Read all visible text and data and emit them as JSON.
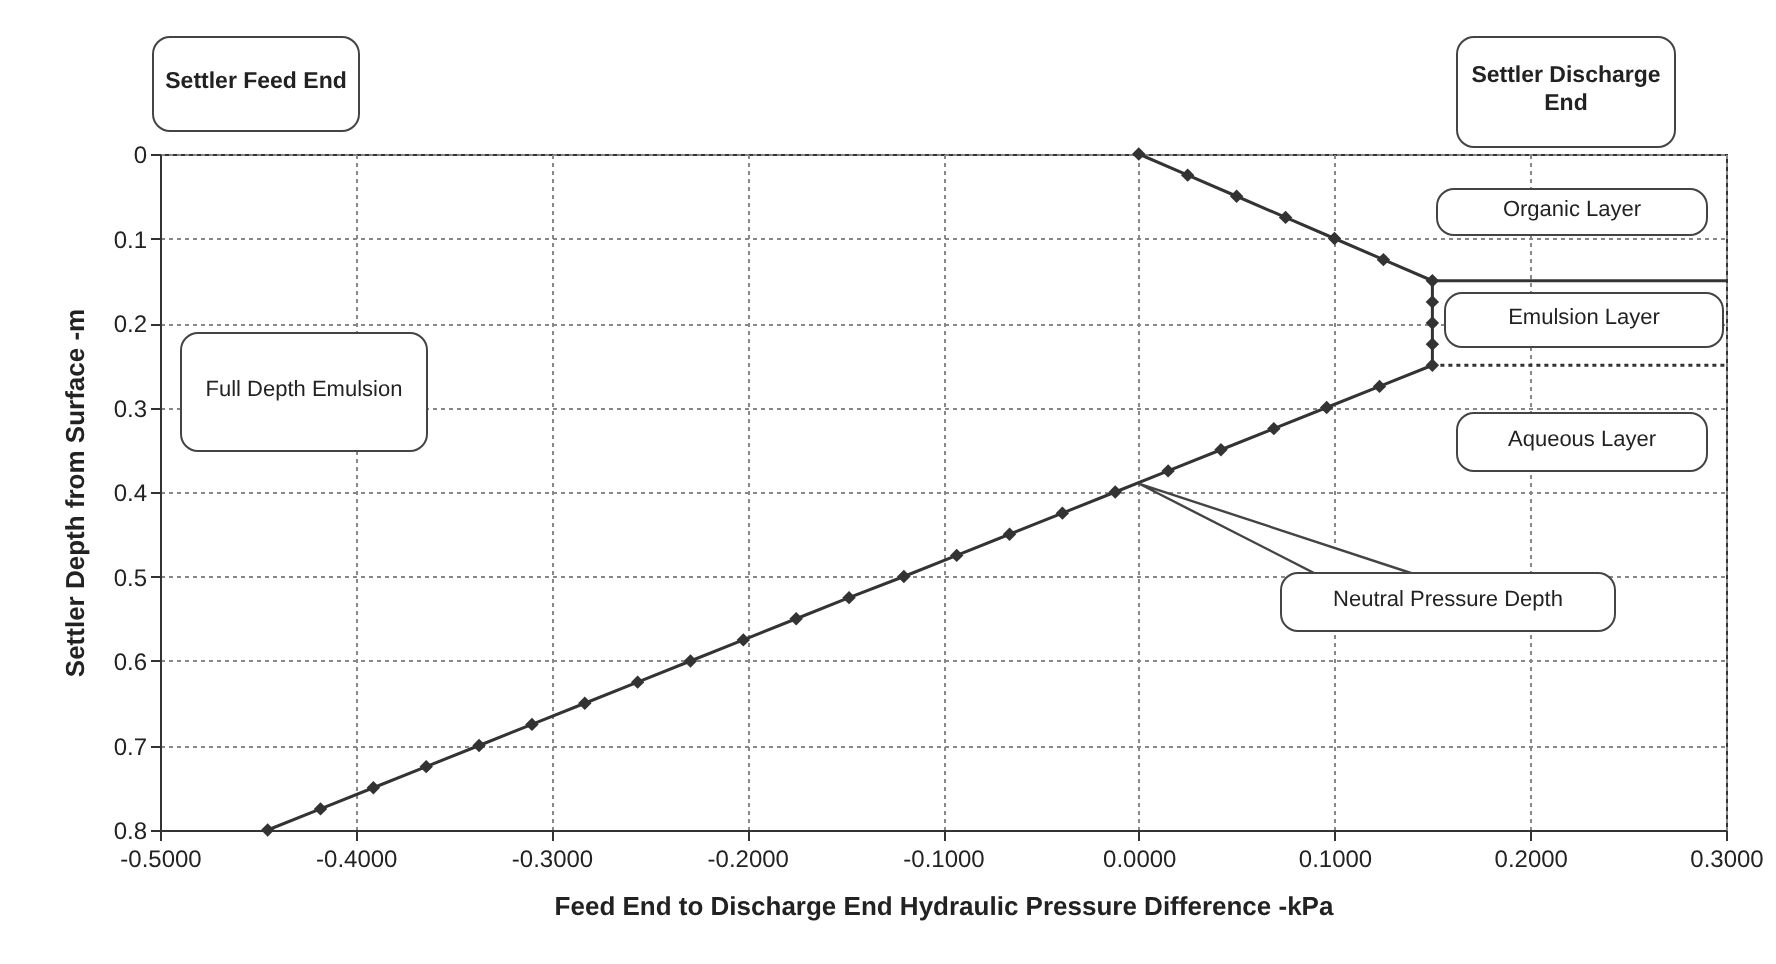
{
  "chart_data": {
    "type": "line",
    "xlabel": "Feed End to Discharge End Hydraulic Pressure Difference -kPa",
    "ylabel": "Settler Depth from Surface -m",
    "series": [
      {
        "color": "#333333",
        "marker": "diamond",
        "x": [
          0,
          0.025,
          0.05,
          0.075,
          0.1,
          0.125,
          0.15,
          0.15,
          0.15,
          0.15,
          0.15,
          0.123,
          0.096,
          0.069,
          0.042,
          0.015,
          -0.012,
          -0.039,
          -0.066,
          -0.093,
          -0.12,
          -0.148,
          -0.175,
          -0.202,
          -0.229,
          -0.256,
          -0.283,
          -0.31,
          -0.337,
          -0.364,
          -0.391,
          -0.418,
          -0.445
        ],
        "values": [
          0,
          0.025,
          0.05,
          0.075,
          0.1,
          0.125,
          0.15,
          0.175,
          0.2,
          0.225,
          0.25,
          0.275,
          0.3,
          0.325,
          0.35,
          0.375,
          0.4,
          0.425,
          0.45,
          0.475,
          0.5,
          0.525,
          0.55,
          0.575,
          0.6,
          0.625,
          0.65,
          0.675,
          0.7,
          0.725,
          0.75,
          0.775,
          0.8
        ]
      },
      {
        "color": "#333333",
        "marker": "none",
        "x": [
          0.15,
          0.3
        ],
        "values": [
          0.15,
          0.15
        ]
      },
      {
        "color": "#333333",
        "marker": "none",
        "line_style": "dotted",
        "x": [
          0.15,
          0.3
        ],
        "values": [
          0.25,
          0.25
        ]
      }
    ],
    "xlim": [
      -0.5,
      0.3
    ],
    "xticks": [
      {
        "value": -0.5,
        "label": "-0.5000"
      },
      {
        "value": -0.4,
        "label": "-0.4000"
      },
      {
        "value": -0.3,
        "label": "-0.3000"
      },
      {
        "value": -0.2,
        "label": "-0.2000"
      },
      {
        "value": -0.1,
        "label": "-0.1000"
      },
      {
        "value": 0,
        "label": "0.0000"
      },
      {
        "value": 0.1,
        "label": "0.1000"
      },
      {
        "value": 0.2,
        "label": "0.2000"
      },
      {
        "value": 0.3,
        "label": "0.3000"
      }
    ],
    "ylim": [
      0.8,
      0
    ],
    "yticks": [
      0,
      0.1,
      0.2,
      0.3,
      0.4,
      0.5,
      0.6,
      0.7,
      0.8
    ],
    "grid": true,
    "annotations": [
      "Settler Feed End",
      "Settler Discharge End",
      "Organic Layer",
      "Emulsion Layer",
      "Aqueous Layer",
      "Full Depth Emulsion",
      {
        "text": "Neutral Pressure Depth",
        "x": 0,
        "y": 0.39
      }
    ]
  }
}
